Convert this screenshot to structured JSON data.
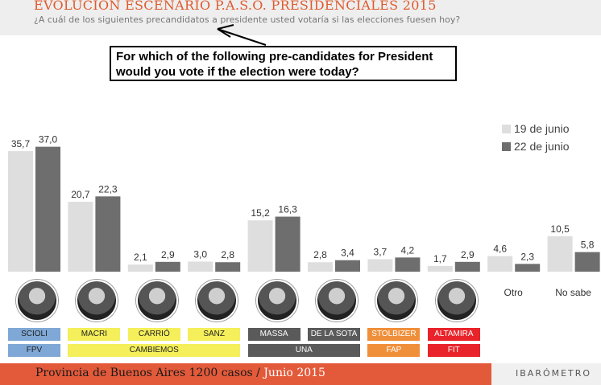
{
  "header": {
    "title": "EVOLUCION ESCENARIO P.A.S.O. PRESIDENCIALES 2015",
    "subtitle": "¿A cuál de los siguientes precandidatos a presidente usted votaría si las elecciones fuesen hoy?"
  },
  "annotation": {
    "text": "For which of the following pre-candidates for President would you vote if the election were today?"
  },
  "chart_data": {
    "type": "bar",
    "categories": [
      "SCIOLI",
      "MACRI",
      "CARRIÓ",
      "SANZ",
      "MASSA",
      "DE LA SOTA",
      "STOLBIZER",
      "ALTAMIRA",
      "Otro",
      "No sabe"
    ],
    "series": [
      {
        "name": "19 de junio",
        "values": [
          35.7,
          20.7,
          2.1,
          3.0,
          15.2,
          2.8,
          3.7,
          1.7,
          4.6,
          10.5
        ],
        "labels": [
          "35,7",
          "20,7",
          "2,1",
          "3,0",
          "15,2",
          "2,8",
          "3,7",
          "1,7",
          "4,6",
          "10,5"
        ]
      },
      {
        "name": "22 de junio",
        "values": [
          37.0,
          22.3,
          2.9,
          2.8,
          16.3,
          3.4,
          4.2,
          2.9,
          2.3,
          5.8
        ],
        "labels": [
          "37,0",
          "22,3",
          "2,9",
          "2,8",
          "16,3",
          "3,4",
          "4,2",
          "2,9",
          "2,3",
          "5,8"
        ]
      }
    ],
    "legend_position": "top-right",
    "grid": false
  },
  "candidates": [
    {
      "name": "SCIOLI",
      "color": "#7fa8d6"
    },
    {
      "name": "MACRI",
      "color": "#f4ef5a"
    },
    {
      "name": "CARRIÓ",
      "color": "#f4ef5a"
    },
    {
      "name": "SANZ",
      "color": "#f4ef5a"
    },
    {
      "name": "MASSA",
      "color": "#5a5a5a"
    },
    {
      "name": "DE LA SOTA",
      "color": "#5a5a5a"
    },
    {
      "name": "STOLBIZER",
      "color": "#f08f3a"
    },
    {
      "name": "ALTAMIRA",
      "color": "#e8232a"
    }
  ],
  "parties": [
    {
      "name": "FPV",
      "color": "#7fa8d6"
    },
    {
      "name": "CAMBIEMOS",
      "color": "#f4ef5a"
    },
    {
      "name": "UNA",
      "color": "#5a5a5a"
    },
    {
      "name": "FAP",
      "color": "#f08f3a"
    },
    {
      "name": "FIT",
      "color": "#e8232a"
    }
  ],
  "colors": {
    "series1": "#dedede",
    "series2": "#6e6e6e",
    "accent": "#e35a3a"
  },
  "footer": {
    "text": "Provincia de Buenos Aires 1200 casos /",
    "date": "Junio 2015",
    "brand": "IBARÓMETRO"
  }
}
